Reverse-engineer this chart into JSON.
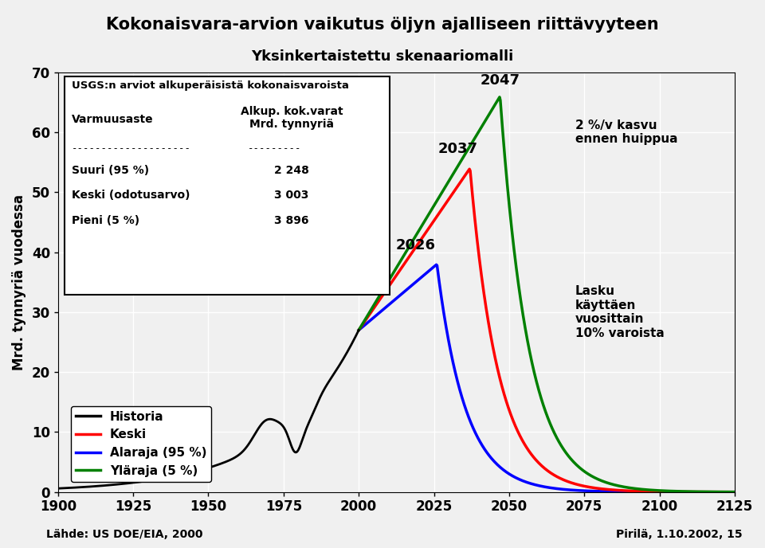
{
  "title": "Kokonaisvara-arvion vaikutus öljyn ajalliseen riittävyyteen",
  "subtitle": "Yksinkertaistettu skenaariomalli",
  "ylabel": "Mrd. tynnyriä vuodessa",
  "xlabel_source": "Lähde: US DOE/EIA, 2000",
  "credit": "Pirilä, 1.10.2002, 15",
  "xlim": [
    1900,
    2125
  ],
  "ylim": [
    0,
    70
  ],
  "yticks": [
    0,
    10,
    20,
    30,
    40,
    50,
    60,
    70
  ],
  "xticks": [
    1900,
    1925,
    1950,
    1975,
    2000,
    2025,
    2050,
    2075,
    2100,
    2125
  ],
  "bg_color": "#f0f0f0",
  "plot_bg_color": "#f0f0f0",
  "colors": {
    "historia": "#000000",
    "keski": "#ff0000",
    "alaraja": "#0000ff",
    "ylaraja": "#008000"
  },
  "legend_entries": [
    "Historia",
    "Keski",
    "Alaraja (95 %)",
    "Yläraja (5 %)"
  ],
  "table_title": "USGS:n arviot alkuperäisistä kokonaisvaroista",
  "table_col1_header": "Varmuusaste",
  "table_col2_header": "Alkup. kok.varat\nMrd. tynnyriä",
  "table_rows": [
    [
      "Suuri (95 %)",
      "2 248"
    ],
    [
      "Keski (odotusarvo)",
      "3 003"
    ],
    [
      "Pieni (5 %)",
      "3 896"
    ]
  ],
  "ann_2047": "2047",
  "ann_2037": "2037",
  "ann_2026": "2026",
  "ann_2pct": "2 %/v kasvu\nennen huippua",
  "ann_lasku": "Lasku\nkäyttäen\nvuosittain\n10% varoista"
}
